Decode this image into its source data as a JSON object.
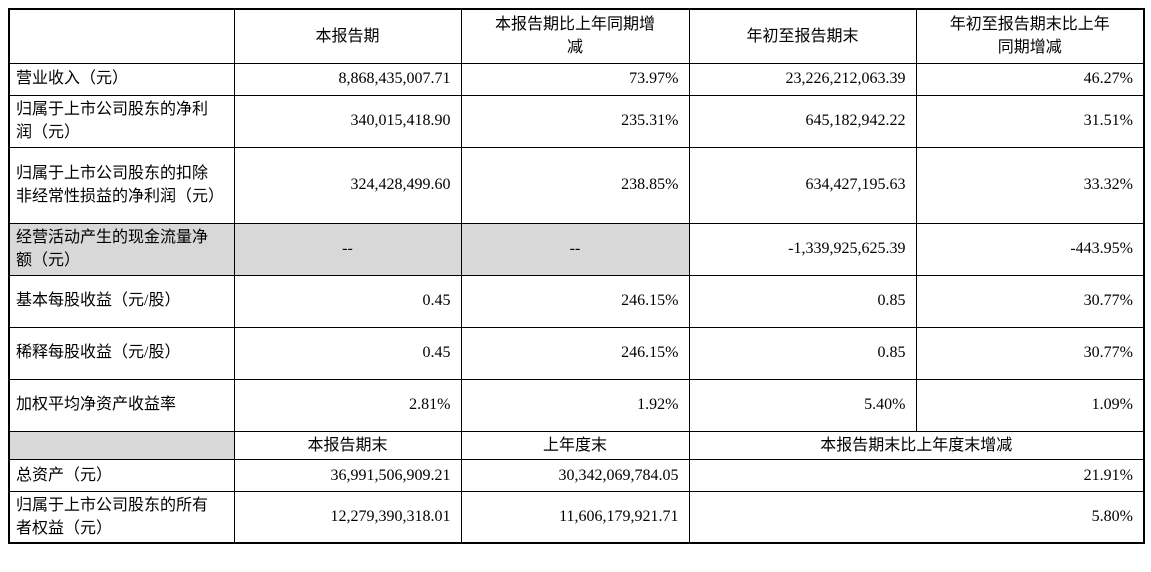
{
  "table1": {
    "headers": [
      "",
      "本报告期",
      "本报告期比上年同期增减",
      "年初至报告期末",
      "年初至报告期末比上年同期增减"
    ],
    "rows": [
      {
        "label": "营业收入（元）",
        "current": "8,868,435,007.71",
        "current_change": "73.97%",
        "ytd": "23,226,212,063.39",
        "ytd_change": "46.27%"
      },
      {
        "label": "归属于上市公司股东的净利润（元）",
        "current": "340,015,418.90",
        "current_change": "235.31%",
        "ytd": "645,182,942.22",
        "ytd_change": "31.51%"
      },
      {
        "label": "归属于上市公司股东的扣除非经常性损益的净利润（元）",
        "current": "324,428,499.60",
        "current_change": "238.85%",
        "ytd": "634,427,195.63",
        "ytd_change": "33.32%"
      },
      {
        "label": "经营活动产生的现金流量净额（元）",
        "current": "--",
        "current_change": "--",
        "ytd": "-1,339,925,625.39",
        "ytd_change": "-443.95%"
      },
      {
        "label": "基本每股收益（元/股）",
        "current": "0.45",
        "current_change": "246.15%",
        "ytd": "0.85",
        "ytd_change": "30.77%"
      },
      {
        "label": "稀释每股收益（元/股）",
        "current": "0.45",
        "current_change": "246.15%",
        "ytd": "0.85",
        "ytd_change": "30.77%"
      },
      {
        "label": "加权平均净资产收益率",
        "current": "2.81%",
        "current_change": "1.92%",
        "ytd": "5.40%",
        "ytd_change": "1.09%"
      }
    ]
  },
  "table2": {
    "headers": [
      "",
      "本报告期末",
      "上年度末",
      "本报告期末比上年度末增减"
    ],
    "rows": [
      {
        "label": "总资产（元）",
        "end": "36,991,506,909.21",
        "prev_year_end": "30,342,069,784.05",
        "change": "21.91%"
      },
      {
        "label": "归属于上市公司股东的所有者权益（元）",
        "end": "12,279,390,318.01",
        "prev_year_end": "11,606,179,921.71",
        "change": "5.80%"
      }
    ]
  }
}
